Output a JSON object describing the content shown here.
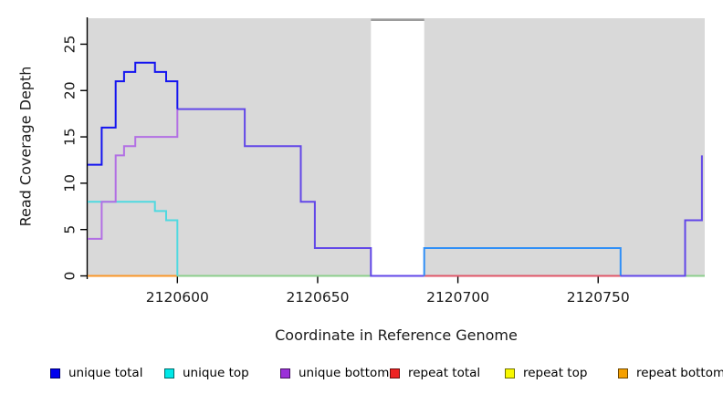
{
  "axes": {
    "x": {
      "title": "Coordinate in Reference Genome",
      "tick_labels": [
        "2120600",
        "2120650",
        "2120700",
        "2120750"
      ],
      "tick_values": [
        2120600,
        2120650,
        2120700,
        2120750
      ],
      "range": [
        2120568,
        2120788
      ]
    },
    "y": {
      "title": "Read Coverage Depth",
      "tick_labels": [
        "0",
        "5",
        "10",
        "15",
        "20",
        "25"
      ],
      "tick_values": [
        0,
        5,
        10,
        15,
        20,
        25
      ],
      "range": [
        0,
        27.8
      ]
    }
  },
  "chart_data": {
    "type": "line",
    "step_mode": "post",
    "title": "",
    "xlabel": "Coordinate in Reference Genome",
    "ylabel": "Read Coverage Depth",
    "xlim": [
      2120568,
      2120788
    ],
    "ylim": [
      0,
      27.8
    ],
    "panel_background": "#d9d9d9",
    "gap_band": {
      "x_start": 2120669,
      "x_end": 2120688,
      "fill": "#ffffff",
      "cap_color": "#9c9c9c"
    },
    "series": [
      {
        "name": "unique total",
        "color": "#0000ee",
        "steps": [
          [
            2120568,
            12
          ],
          [
            2120573,
            16
          ],
          [
            2120578,
            21
          ],
          [
            2120581,
            22
          ],
          [
            2120585,
            23
          ],
          [
            2120592,
            22
          ],
          [
            2120596,
            21
          ],
          [
            2120600,
            18
          ],
          [
            2120624,
            14
          ],
          [
            2120644,
            8
          ],
          [
            2120649,
            3
          ],
          [
            2120669,
            0
          ],
          [
            2120688,
            3
          ],
          [
            2120758,
            0
          ],
          [
            2120781,
            6
          ],
          [
            2120787,
            13
          ]
        ]
      },
      {
        "name": "unique top",
        "color": "#00e8e8",
        "steps": [
          [
            2120568,
            8
          ],
          [
            2120592,
            7
          ],
          [
            2120596,
            6
          ],
          [
            2120600,
            0
          ],
          [
            2120688,
            3
          ],
          [
            2120758,
            0
          ]
        ]
      },
      {
        "name": "unique bottom",
        "color": "#9b30d9",
        "steps": [
          [
            2120568,
            4
          ],
          [
            2120573,
            8
          ],
          [
            2120578,
            13
          ],
          [
            2120581,
            14
          ],
          [
            2120585,
            15
          ],
          [
            2120600,
            18
          ],
          [
            2120624,
            14
          ],
          [
            2120644,
            8
          ],
          [
            2120649,
            3
          ],
          [
            2120669,
            0
          ],
          [
            2120781,
            6
          ],
          [
            2120787,
            13
          ]
        ]
      },
      {
        "name": "repeat total",
        "color": "#ee2222",
        "steps": [
          [
            2120688,
            0
          ]
        ]
      },
      {
        "name": "repeat top",
        "color": "#f8f800",
        "steps": [
          [
            2120600,
            0
          ]
        ]
      },
      {
        "name": "repeat bottom",
        "color": "#f5a000",
        "steps": [
          [
            2120568,
            0
          ],
          [
            2120600,
            0
          ]
        ]
      }
    ],
    "rendered_segments": [
      {
        "name": "baseline-orange",
        "color": "#fa9628",
        "points": [
          [
            2120568,
            0
          ],
          [
            2120600,
            0
          ]
        ]
      },
      {
        "name": "baseline-green",
        "color": "#8cce8c",
        "points": [
          [
            2120600,
            0
          ],
          [
            2120669,
            0
          ]
        ]
      },
      {
        "name": "baseline-red",
        "color": "#e05668",
        "points": [
          [
            2120688,
            0
          ],
          [
            2120788,
            0
          ]
        ]
      },
      {
        "name": "baseline-green-right",
        "color": "#8cce8c",
        "points": [
          [
            2120781,
            0
          ],
          [
            2120788,
            0
          ]
        ]
      },
      {
        "name": "unique-top-cyan",
        "color": "#4fd9e0",
        "points": [
          [
            2120568,
            8
          ],
          [
            2120592,
            8
          ],
          [
            2120592,
            7
          ],
          [
            2120596,
            7
          ],
          [
            2120596,
            6
          ],
          [
            2120600,
            6
          ],
          [
            2120600,
            0
          ]
        ]
      },
      {
        "name": "unique-bottom-purple",
        "color": "#b26fe4",
        "points": [
          [
            2120568,
            4
          ],
          [
            2120573,
            4
          ],
          [
            2120573,
            8
          ],
          [
            2120578,
            8
          ],
          [
            2120578,
            13
          ],
          [
            2120581,
            13
          ],
          [
            2120581,
            14
          ],
          [
            2120585,
            14
          ],
          [
            2120585,
            15
          ],
          [
            2120600,
            15
          ],
          [
            2120600,
            18
          ]
        ]
      },
      {
        "name": "merged-blue-purple",
        "color": "#6247e8",
        "points": [
          [
            2120600,
            18
          ],
          [
            2120624,
            18
          ],
          [
            2120624,
            14
          ],
          [
            2120644,
            14
          ],
          [
            2120644,
            8
          ],
          [
            2120649,
            8
          ],
          [
            2120649,
            3
          ],
          [
            2120669,
            3
          ],
          [
            2120669,
            0
          ],
          [
            2120688,
            0
          ]
        ]
      },
      {
        "name": "merged-blue-cyan",
        "color": "#2f8ff7",
        "points": [
          [
            2120688,
            0
          ],
          [
            2120688,
            3
          ],
          [
            2120758,
            3
          ],
          [
            2120758,
            0
          ]
        ]
      },
      {
        "name": "merged-right-violet",
        "color": "#6247e8",
        "points": [
          [
            2120758,
            0
          ],
          [
            2120781,
            0
          ],
          [
            2120781,
            6
          ],
          [
            2120787,
            6
          ],
          [
            2120787,
            13
          ]
        ]
      },
      {
        "name": "unique-total-blue",
        "color": "#1414f0",
        "points": [
          [
            2120568,
            12
          ],
          [
            2120573,
            12
          ],
          [
            2120573,
            16
          ],
          [
            2120578,
            16
          ],
          [
            2120578,
            21
          ],
          [
            2120581,
            21
          ],
          [
            2120581,
            22
          ],
          [
            2120585,
            22
          ],
          [
            2120585,
            23
          ],
          [
            2120592,
            23
          ],
          [
            2120592,
            22
          ],
          [
            2120596,
            22
          ],
          [
            2120596,
            21
          ],
          [
            2120600,
            21
          ],
          [
            2120600,
            18
          ]
        ]
      }
    ]
  },
  "legend": {
    "swatch_border": "rgba(0,0,0,0.55)",
    "items": [
      {
        "label": "unique total",
        "color": "#0000ee"
      },
      {
        "label": "unique top",
        "color": "#00e8e8"
      },
      {
        "label": "unique bottom",
        "color": "#9b30d9"
      },
      {
        "label": "repeat total",
        "color": "#ee2222"
      },
      {
        "label": "repeat top",
        "color": "#f8f800"
      },
      {
        "label": "repeat bottom",
        "color": "#f5a000"
      }
    ]
  }
}
